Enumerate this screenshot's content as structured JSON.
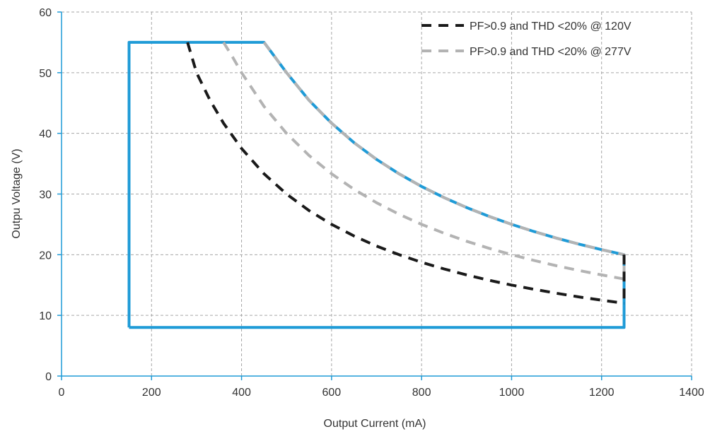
{
  "chart_data": {
    "type": "line",
    "title": "",
    "xlabel": "Output Current (mA)",
    "ylabel": "Outpu Voltage (V)",
    "xlim": [
      0,
      1400
    ],
    "ylim": [
      0,
      60
    ],
    "x_ticks": [
      0,
      200,
      400,
      600,
      800,
      1000,
      1200,
      1400
    ],
    "y_ticks": [
      0,
      10,
      20,
      30,
      40,
      50,
      60
    ],
    "x_tick_labels": [
      "0",
      "200",
      "400",
      "600",
      "800",
      "1000",
      "1200",
      "1400"
    ],
    "y_tick_labels": [
      "0",
      "10",
      "20",
      "30",
      "40",
      "50",
      "60"
    ],
    "grid": true,
    "legend_position": "top-right",
    "series": [
      {
        "style": "solid",
        "color": "#1f9bd7",
        "points": [
          [
            150,
            8
          ],
          [
            150,
            55
          ],
          [
            450,
            55
          ],
          [
            500,
            50
          ],
          [
            550,
            45.45
          ],
          [
            600,
            41.67
          ],
          [
            650,
            38.46
          ],
          [
            700,
            35.71
          ],
          [
            750,
            33.33
          ],
          [
            800,
            31.25
          ],
          [
            850,
            29.41
          ],
          [
            900,
            27.78
          ],
          [
            950,
            26.32
          ],
          [
            1000,
            25
          ],
          [
            1050,
            23.81
          ],
          [
            1100,
            22.73
          ],
          [
            1150,
            21.74
          ],
          [
            1200,
            20.83
          ],
          [
            1250,
            20
          ],
          [
            1250,
            8
          ],
          [
            150,
            8
          ]
        ]
      },
      {
        "name": "PF>0.9 and THD <20% @ 120V",
        "style": "dashed",
        "color": "#1a1a1a",
        "points": [
          [
            280,
            55
          ],
          [
            300,
            50
          ],
          [
            330,
            45.45
          ],
          [
            360,
            41.67
          ],
          [
            400,
            37.5
          ],
          [
            450,
            33.33
          ],
          [
            500,
            30
          ],
          [
            550,
            27.27
          ],
          [
            600,
            25
          ],
          [
            650,
            23.08
          ],
          [
            700,
            21.43
          ],
          [
            750,
            20
          ],
          [
            800,
            18.75
          ],
          [
            850,
            17.65
          ],
          [
            900,
            16.67
          ],
          [
            950,
            15.79
          ],
          [
            1000,
            15
          ],
          [
            1050,
            14.29
          ],
          [
            1100,
            13.64
          ],
          [
            1150,
            13.04
          ],
          [
            1200,
            12.5
          ],
          [
            1250,
            12
          ]
        ]
      },
      {
        "name": "PF>0.9 and THD <20% @ 277V",
        "style": "dashed",
        "color": "#b3b3b3",
        "points": [
          [
            360,
            55
          ],
          [
            380,
            52.6
          ],
          [
            400,
            50
          ],
          [
            450,
            44.44
          ],
          [
            500,
            40
          ],
          [
            550,
            36.36
          ],
          [
            600,
            33.33
          ],
          [
            650,
            30.77
          ],
          [
            700,
            28.57
          ],
          [
            750,
            26.67
          ],
          [
            800,
            25
          ],
          [
            850,
            23.53
          ],
          [
            900,
            22.22
          ],
          [
            950,
            21.05
          ],
          [
            1000,
            20
          ],
          [
            1050,
            19.05
          ],
          [
            1100,
            18.18
          ],
          [
            1150,
            17.39
          ],
          [
            1200,
            16.67
          ],
          [
            1250,
            16
          ]
        ]
      },
      {
        "style": "dashed",
        "color": "#b3b3b3",
        "points": [
          [
            450,
            55
          ],
          [
            500,
            50
          ],
          [
            550,
            45.45
          ],
          [
            600,
            41.67
          ],
          [
            650,
            38.46
          ],
          [
            700,
            35.71
          ],
          [
            750,
            33.33
          ],
          [
            800,
            31.25
          ],
          [
            850,
            29.41
          ],
          [
            900,
            27.78
          ],
          [
            950,
            26.32
          ],
          [
            1000,
            25
          ],
          [
            1050,
            23.81
          ],
          [
            1100,
            22.73
          ],
          [
            1150,
            21.74
          ],
          [
            1200,
            20.83
          ],
          [
            1250,
            20
          ],
          [
            1250,
            16
          ]
        ]
      },
      {
        "style": "dashed",
        "color": "#1a1a1a",
        "points": [
          [
            1250,
            20
          ],
          [
            1250,
            12
          ]
        ]
      }
    ]
  }
}
